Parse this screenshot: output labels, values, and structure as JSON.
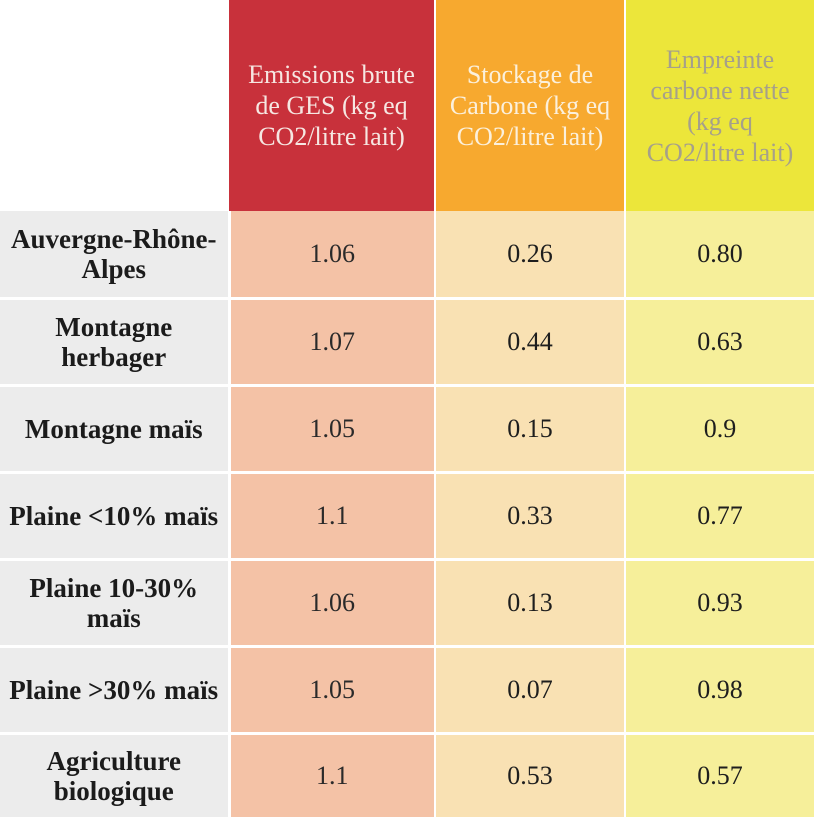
{
  "table": {
    "headers": [
      "",
      "Emissions brute de GES (kg eq CO2/litre lait)",
      "Stockage de Carbone (kg eq CO2/litre lait)",
      "Empreinte carbone nette (kg eq CO2/litre lait)"
    ],
    "rows": [
      {
        "label": "Auvergne-Rhône-Alpes",
        "values": [
          "1.06",
          "0.26",
          "0.80"
        ]
      },
      {
        "label": "Montagne herbager",
        "values": [
          "1.07",
          "0.44",
          "0.63"
        ]
      },
      {
        "label": "Montagne maïs",
        "values": [
          "1.05",
          "0.15",
          "0.9"
        ]
      },
      {
        "label": "Plaine <10% maïs",
        "values": [
          "1.1",
          "0.33",
          "0.77"
        ]
      },
      {
        "label": "Plaine 10-30% maïs",
        "values": [
          "1.06",
          "0.13",
          "0.93"
        ]
      },
      {
        "label": "Plaine >30% maïs",
        "values": [
          "1.05",
          "0.07",
          "0.98"
        ]
      },
      {
        "label": "Agriculture biologique",
        "values": [
          "1.1",
          "0.53",
          "0.57"
        ]
      }
    ],
    "colors": {
      "emissions_header": "#c8313b",
      "stockage_header": "#f7a92f",
      "empreinte_header": "#ece63a",
      "emissions_cells": "#f4c2a6",
      "stockage_cells": "#f9e1b3",
      "empreinte_cells": "#f6ef9a",
      "label_cells": "#ececec"
    }
  }
}
